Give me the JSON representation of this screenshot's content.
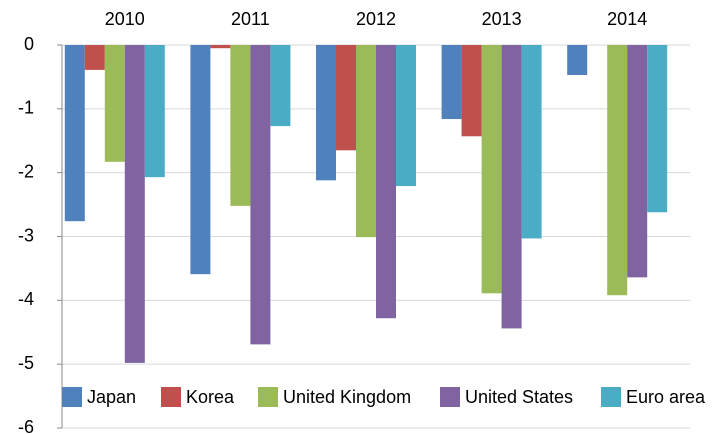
{
  "chart_data": {
    "type": "bar",
    "categories": [
      "2010",
      "2011",
      "2012",
      "2013",
      "2014"
    ],
    "series": [
      {
        "name": "Japan",
        "color": "#4f81bd",
        "values": [
          -2.76,
          -3.59,
          -2.12,
          -1.16,
          -0.47
        ]
      },
      {
        "name": "Korea",
        "color": "#c0504d",
        "values": [
          -0.39,
          -0.05,
          -1.65,
          -1.43,
          null
        ]
      },
      {
        "name": "United Kingdom",
        "color": "#9bbb59",
        "values": [
          -1.83,
          -2.52,
          -3.01,
          -3.89,
          -3.92
        ]
      },
      {
        "name": "United States",
        "color": "#8064a2",
        "values": [
          -4.98,
          -4.69,
          -4.28,
          -4.44,
          -3.64
        ]
      },
      {
        "name": "Euro area",
        "color": "#4bacc6",
        "values": [
          -2.07,
          -1.27,
          -2.21,
          -3.03,
          -2.62
        ]
      }
    ],
    "ylim": [
      -6,
      0
    ],
    "yticks": [
      0,
      -1,
      -2,
      -3,
      -4,
      -5,
      -6
    ],
    "grid": true,
    "legend": "bottom"
  }
}
